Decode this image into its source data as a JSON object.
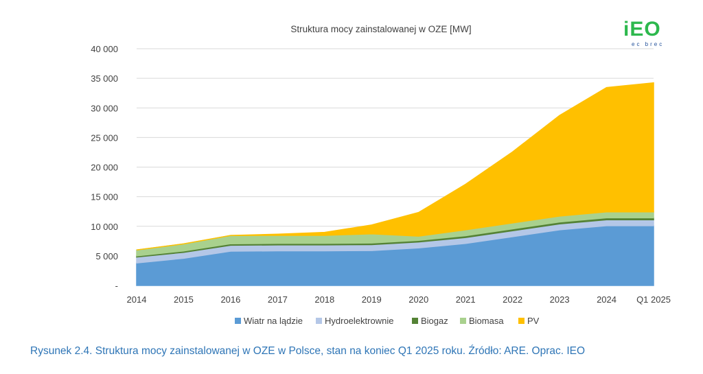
{
  "logo": {
    "text": "iEO",
    "subtext": "ec brec"
  },
  "caption": "Rysunek 2.4. Struktura mocy zainstalowanej w OZE w Polsce, stan na koniec Q1 2025 roku. Źródło: ARE. Oprac. IEO",
  "chart_data": {
    "type": "area",
    "stacked": true,
    "title": "Struktura mocy zainstalowanej w OZE [MW]",
    "xlabel": "",
    "ylabel": "",
    "ylim": [
      0,
      40000
    ],
    "y_ticks": [
      0,
      5000,
      10000,
      15000,
      20000,
      25000,
      30000,
      35000,
      40000
    ],
    "y_tick_labels": [
      "-",
      "5 000",
      "10 000",
      "15 000",
      "20 000",
      "25 000",
      "30 000",
      "35 000",
      "40 000"
    ],
    "grid": true,
    "legend_position": "bottom",
    "categories": [
      "2014",
      "2015",
      "2016",
      "2017",
      "2018",
      "2019",
      "2020",
      "2021",
      "2022",
      "2023",
      "2024",
      "Q1 2025"
    ],
    "series": [
      {
        "name": "Wiatr na lądzie",
        "color": "#5b9bd5",
        "values": [
          3800,
          4600,
          5800,
          5850,
          5860,
          5900,
          6350,
          7100,
          8250,
          9400,
          10100,
          10100
        ]
      },
      {
        "name": "Hydroelektrownie",
        "color": "#b4c7e7",
        "values": [
          1000,
          1000,
          1000,
          1000,
          1000,
          1000,
          1000,
          1000,
          1000,
          1000,
          1000,
          1000
        ]
      },
      {
        "name": "Biogaz",
        "color": "#548235",
        "values": [
          200,
          230,
          250,
          260,
          260,
          270,
          280,
          300,
          320,
          330,
          340,
          340
        ]
      },
      {
        "name": "Biomasa",
        "color": "#a9d18e",
        "values": [
          1000,
          1200,
          1400,
          1350,
          1350,
          1550,
          700,
          1000,
          1000,
          1000,
          1000,
          1000
        ]
      },
      {
        "name": "PV",
        "color": "#ffc000",
        "values": [
          0,
          0,
          0,
          200,
          500,
          1500,
          4000,
          7700,
          12000,
          17000,
          21000,
          21800
        ]
      }
    ]
  }
}
